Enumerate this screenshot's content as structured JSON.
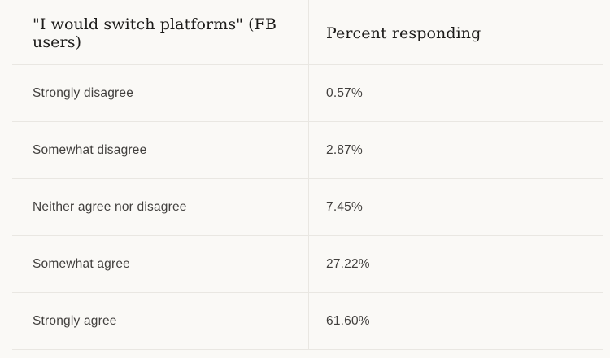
{
  "table": {
    "header": {
      "question_column": "\"I would switch platforms\" (FB users)",
      "percent_column": "Percent responding"
    },
    "rows": [
      {
        "label": "Strongly disagree",
        "value": "0.57%"
      },
      {
        "label": "Somewhat disagree",
        "value": "2.87%"
      },
      {
        "label": "Neither agree nor disagree",
        "value": "7.45%"
      },
      {
        "label": "Somewhat agree",
        "value": "27.22%"
      },
      {
        "label": "Strongly agree",
        "value": "61.60%"
      }
    ]
  },
  "chart_data": {
    "type": "table",
    "title": "\"I would switch platforms\" (FB users)",
    "columns": [
      "\"I would switch platforms\" (FB users)",
      "Percent responding"
    ],
    "categories": [
      "Strongly disagree",
      "Somewhat disagree",
      "Neither agree nor disagree",
      "Somewhat agree",
      "Strongly agree"
    ],
    "values": [
      0.57,
      2.87,
      7.45,
      27.22,
      61.6
    ],
    "unit": "%",
    "legend_position": "none",
    "grid": "row-separators"
  },
  "colors": {
    "background": "#faf9f6",
    "border": "#e9e7e2",
    "header_text": "#1d1c1a",
    "body_text": "#413f3d"
  }
}
